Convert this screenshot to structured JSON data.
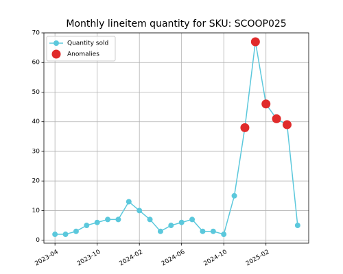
{
  "chart_data": {
    "type": "line",
    "title": "Monthly lineitem quantity for SKU: SCOOP025",
    "categories": [
      "2023-04",
      null,
      null,
      null,
      "2023-10",
      null,
      null,
      null,
      "2024-02",
      null,
      null,
      null,
      "2024-06",
      null,
      null,
      null,
      "2024-10",
      null,
      null,
      null,
      "2025-02",
      null,
      null,
      null
    ],
    "series": [
      {
        "name": "Quantity sold",
        "color": "#5bc8dc",
        "mode": "lines+markers",
        "values": [
          2,
          2,
          3,
          5,
          6,
          7,
          7,
          13,
          10,
          7,
          3,
          5,
          6,
          7,
          3,
          3,
          2,
          15,
          38,
          67,
          46,
          41,
          39,
          5
        ]
      },
      {
        "name": "Anomalies",
        "color": "#e02b2b",
        "mode": "markers",
        "values": [
          null,
          null,
          null,
          null,
          null,
          null,
          null,
          null,
          null,
          null,
          null,
          null,
          null,
          null,
          null,
          null,
          null,
          null,
          38,
          67,
          46,
          41,
          39,
          null
        ]
      }
    ],
    "ylim": [
      -1,
      70
    ],
    "yticks": [
      0,
      10,
      20,
      30,
      40,
      50,
      60,
      70
    ],
    "grid": true,
    "legend": "upper left"
  }
}
